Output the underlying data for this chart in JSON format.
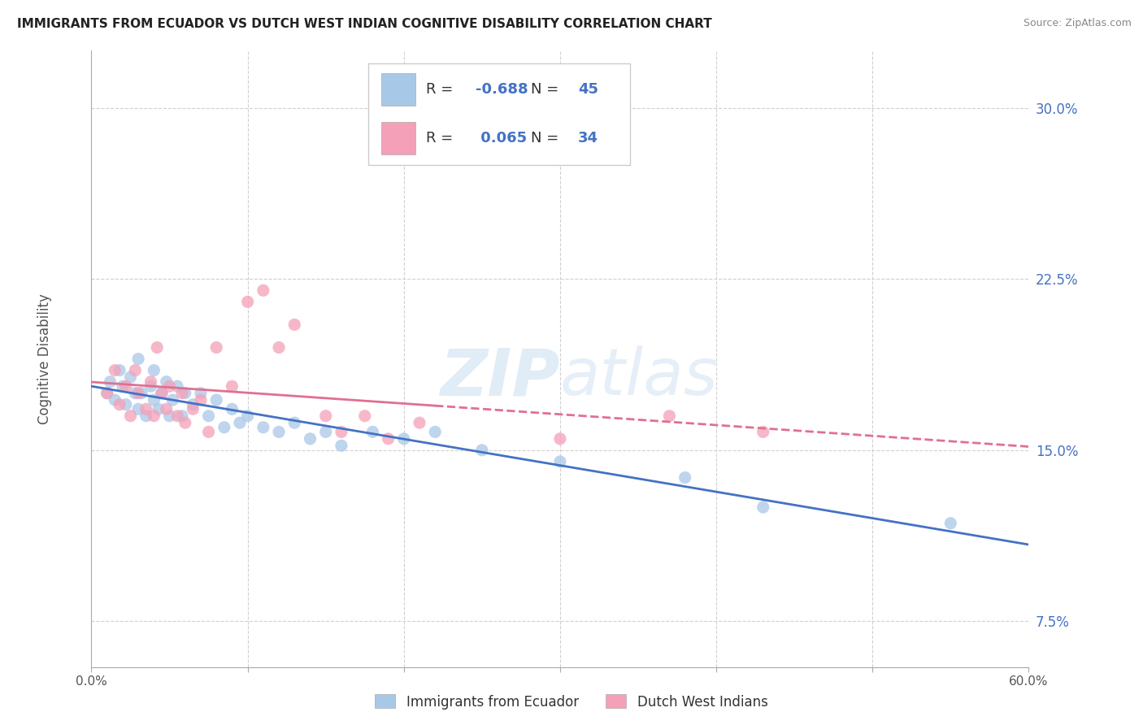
{
  "title": "IMMIGRANTS FROM ECUADOR VS DUTCH WEST INDIAN COGNITIVE DISABILITY CORRELATION CHART",
  "source": "Source: ZipAtlas.com",
  "ylabel": "Cognitive Disability",
  "xlim": [
    0.0,
    0.6
  ],
  "ylim": [
    0.055,
    0.325
  ],
  "yticks": [
    0.075,
    0.15,
    0.225,
    0.3
  ],
  "ytick_labels": [
    "7.5%",
    "15.0%",
    "22.5%",
    "30.0%"
  ],
  "xticks": [
    0.0,
    0.1,
    0.2,
    0.3,
    0.4,
    0.5,
    0.6
  ],
  "xtick_labels": [
    "0.0%",
    "",
    "",
    "",
    "",
    "",
    "60.0%"
  ],
  "ecuador_R": -0.688,
  "ecuador_N": 45,
  "dutch_R": 0.065,
  "dutch_N": 34,
  "ecuador_color": "#a8c8e8",
  "dutch_color": "#f4a0b8",
  "ecuador_line_color": "#4472c4",
  "dutch_line_color": "#e07090",
  "background_color": "#ffffff",
  "grid_color": "#d0d0d0",
  "watermark": "ZIPatlas",
  "legend_label_ecuador": "Immigrants from Ecuador",
  "legend_label_dutch": "Dutch West Indians",
  "ecuador_x": [
    0.01,
    0.012,
    0.015,
    0.018,
    0.02,
    0.022,
    0.025,
    0.028,
    0.03,
    0.03,
    0.032,
    0.035,
    0.038,
    0.04,
    0.04,
    0.043,
    0.045,
    0.048,
    0.05,
    0.052,
    0.055,
    0.058,
    0.06,
    0.065,
    0.07,
    0.075,
    0.08,
    0.085,
    0.09,
    0.095,
    0.1,
    0.11,
    0.12,
    0.13,
    0.14,
    0.15,
    0.16,
    0.18,
    0.2,
    0.22,
    0.25,
    0.3,
    0.38,
    0.43,
    0.55
  ],
  "ecuador_y": [
    0.175,
    0.18,
    0.172,
    0.185,
    0.178,
    0.17,
    0.182,
    0.175,
    0.168,
    0.19,
    0.175,
    0.165,
    0.178,
    0.172,
    0.185,
    0.168,
    0.175,
    0.18,
    0.165,
    0.172,
    0.178,
    0.165,
    0.175,
    0.17,
    0.175,
    0.165,
    0.172,
    0.16,
    0.168,
    0.162,
    0.165,
    0.16,
    0.158,
    0.162,
    0.155,
    0.158,
    0.152,
    0.158,
    0.155,
    0.158,
    0.15,
    0.145,
    0.138,
    0.125,
    0.118
  ],
  "dutch_x": [
    0.01,
    0.015,
    0.018,
    0.022,
    0.025,
    0.028,
    0.03,
    0.035,
    0.038,
    0.04,
    0.042,
    0.045,
    0.048,
    0.05,
    0.055,
    0.058,
    0.06,
    0.065,
    0.07,
    0.075,
    0.08,
    0.09,
    0.1,
    0.11,
    0.12,
    0.13,
    0.15,
    0.16,
    0.175,
    0.19,
    0.21,
    0.3,
    0.37,
    0.43
  ],
  "dutch_y": [
    0.175,
    0.185,
    0.17,
    0.178,
    0.165,
    0.185,
    0.175,
    0.168,
    0.18,
    0.165,
    0.195,
    0.175,
    0.168,
    0.178,
    0.165,
    0.175,
    0.162,
    0.168,
    0.172,
    0.158,
    0.195,
    0.178,
    0.215,
    0.22,
    0.195,
    0.205,
    0.165,
    0.158,
    0.165,
    0.155,
    0.162,
    0.155,
    0.165,
    0.158
  ]
}
